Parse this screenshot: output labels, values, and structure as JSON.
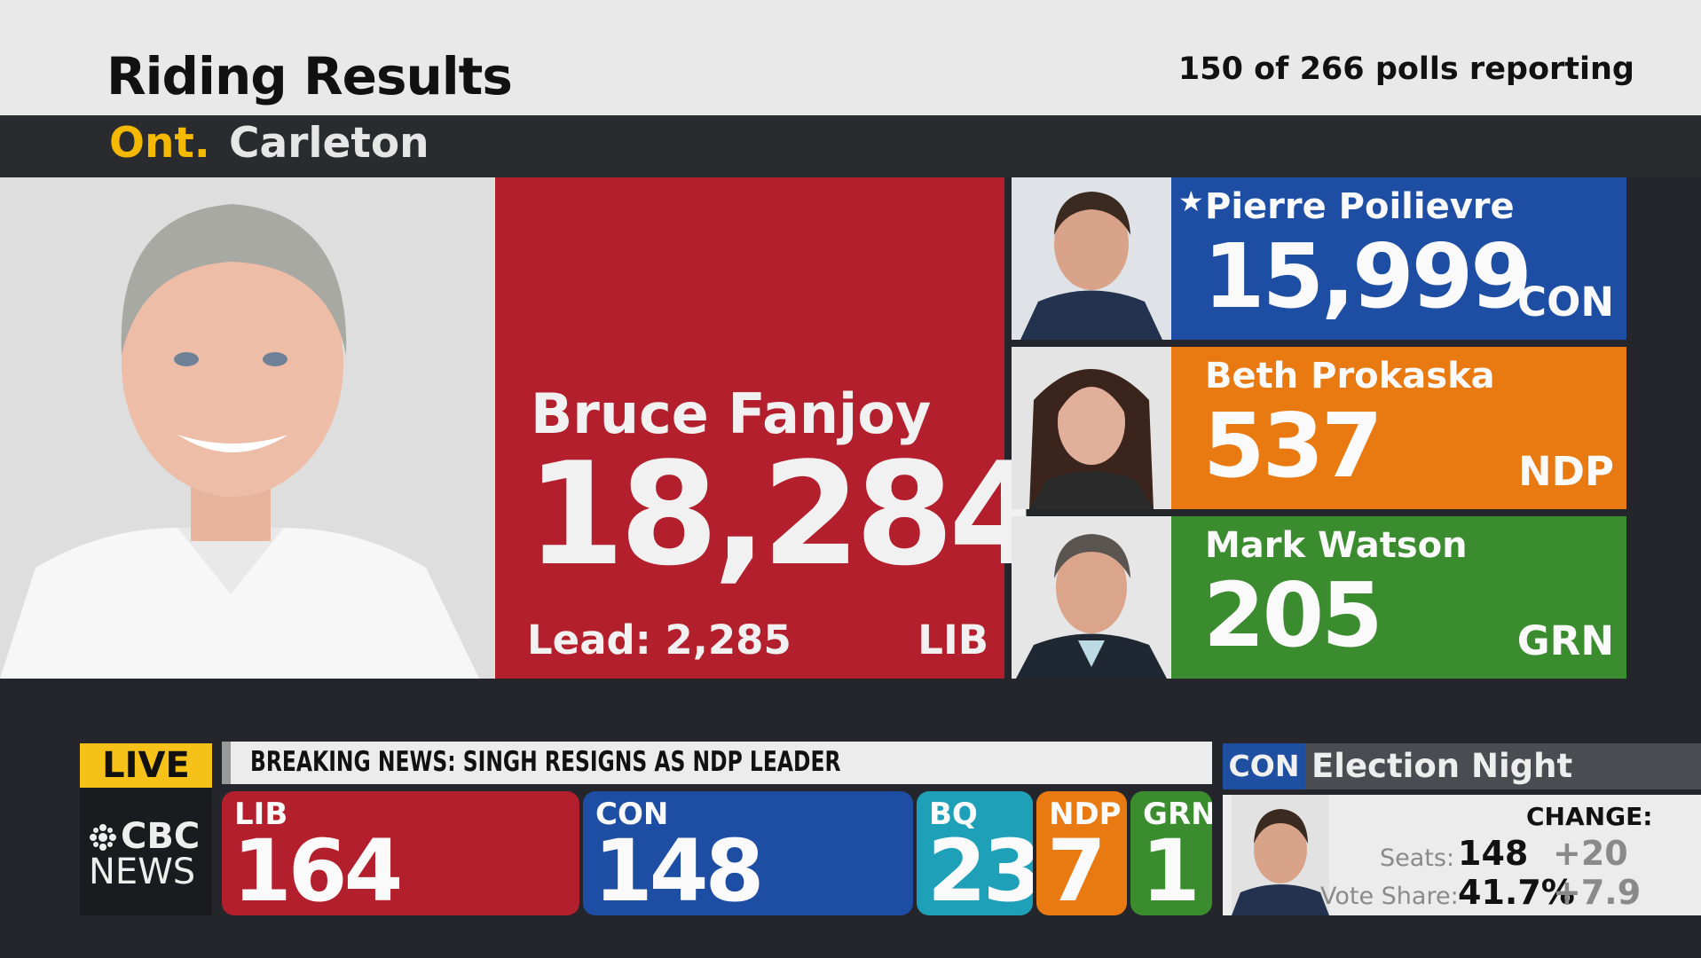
{
  "header": {
    "title": "Riding Results",
    "polls_reporting": "150 of 266 polls reporting",
    "province": "Ont.",
    "riding": "Carleton"
  },
  "leader": {
    "name": "Bruce Fanjoy",
    "votes": "18,284",
    "lead_label": "Lead: 2,285",
    "party": "LIB",
    "color": "#b31f2c"
  },
  "candidates": [
    {
      "name": "Pierre Poilievre",
      "votes": "15,999",
      "party": "CON",
      "color": "#1d4ea3",
      "incumbent_star": "★"
    },
    {
      "name": "Beth Prokaska",
      "votes": "537",
      "party": "NDP",
      "color": "#e97a12"
    },
    {
      "name": "Mark Watson",
      "votes": "205",
      "party": "GRN",
      "color": "#3a8c2f"
    }
  ],
  "bottom": {
    "live_label": "LIVE",
    "network_logo_line1": "CBC",
    "network_logo_line2": "NEWS",
    "ticker": "BREAKING NEWS: SINGH RESIGNS AS NDP LEADER",
    "seats": [
      {
        "party": "LIB",
        "count": "164",
        "color": "#b31f2c"
      },
      {
        "party": "CON",
        "count": "148",
        "color": "#1d4ea3"
      },
      {
        "party": "BQ",
        "count": "23",
        "color": "#1ea0b8"
      },
      {
        "party": "NDP",
        "count": "7",
        "color": "#e97a12"
      },
      {
        "party": "GRN",
        "count": "1",
        "color": "#3a8c2f"
      }
    ],
    "election_night": {
      "party_tag": "CON",
      "title": "Election Night",
      "change_label": "CHANGE:",
      "seats_label": "Seats:",
      "seats_value": "148",
      "seats_change": "+20",
      "vote_share_label": "Vote Share:",
      "vote_share_value": "41.7%",
      "vote_share_change": "+7.9"
    }
  }
}
